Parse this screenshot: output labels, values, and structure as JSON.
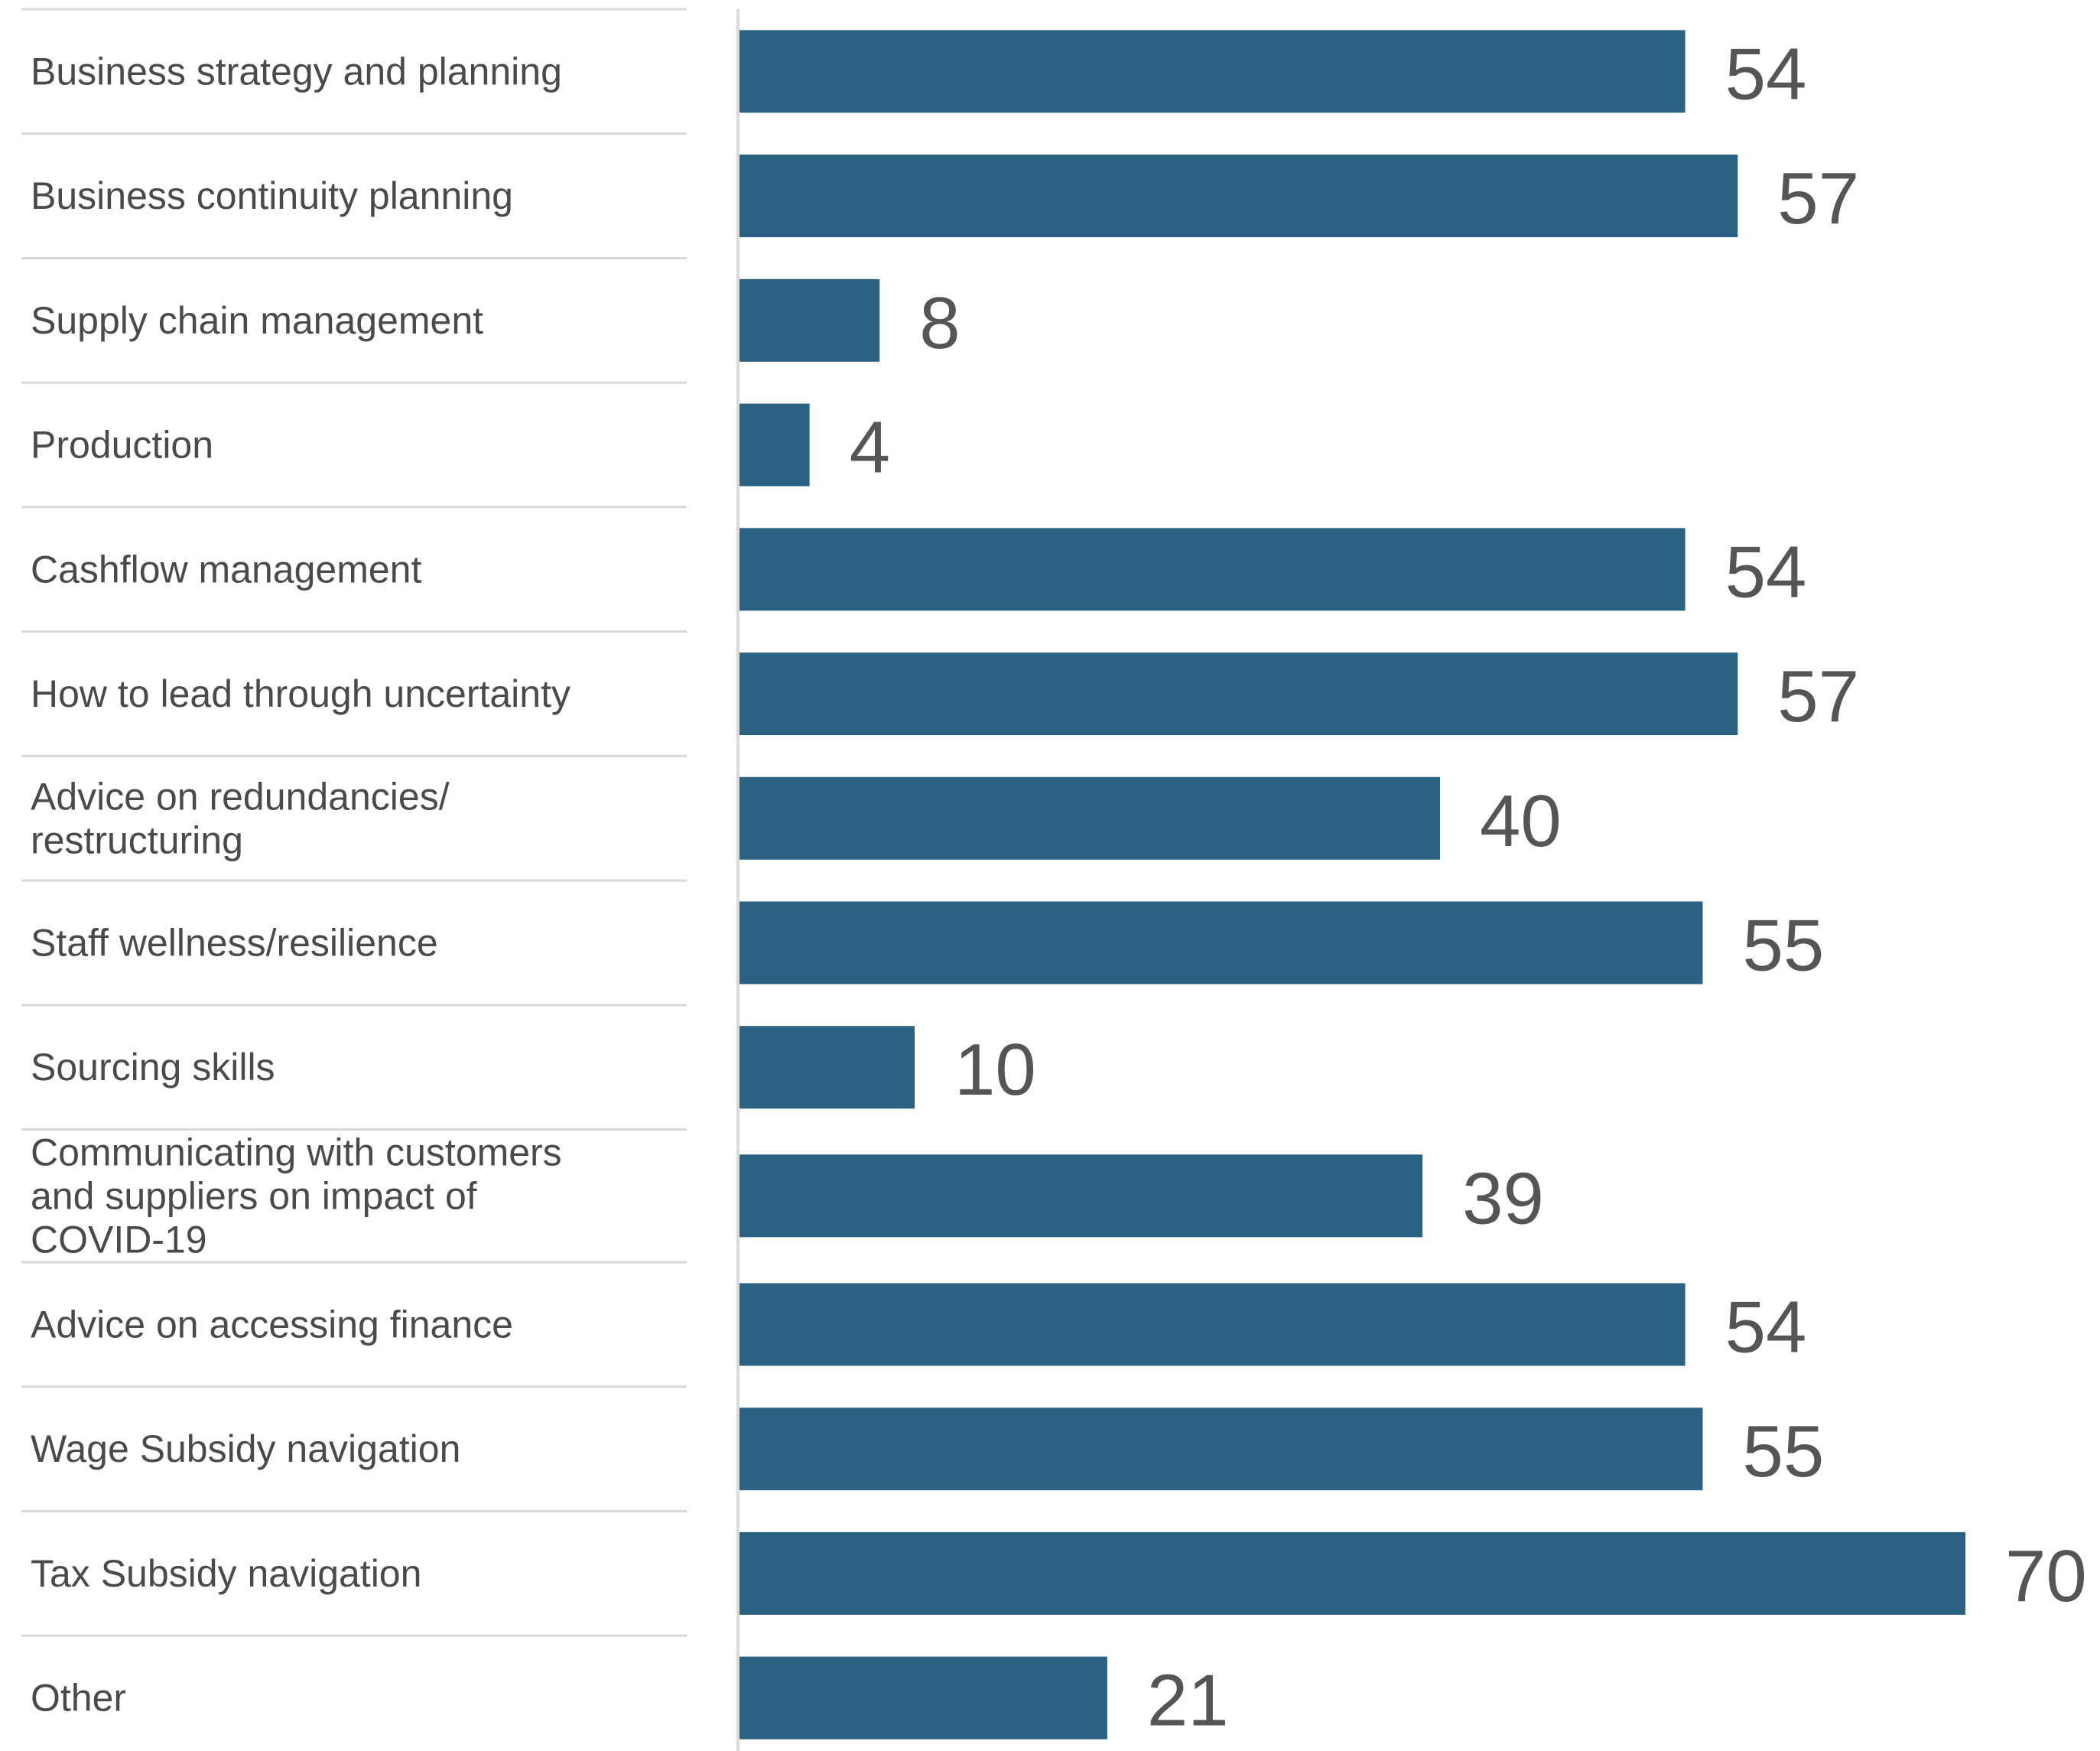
{
  "chart_data": {
    "type": "bar",
    "orientation": "horizontal",
    "categories": [
      [
        "Business strategy and planning"
      ],
      [
        "Business continuity planning"
      ],
      [
        "Supply chain management"
      ],
      [
        "Production"
      ],
      [
        "Cashflow management"
      ],
      [
        "How to lead through uncertainty"
      ],
      [
        "Advice on redundancies/",
        "restructuring"
      ],
      [
        "Staff wellness/resilience"
      ],
      [
        "Sourcing skills"
      ],
      [
        "Communicating with customers",
        "and suppliers on impact of",
        "COVID-19"
      ],
      [
        "Advice on accessing finance"
      ],
      [
        "Wage Subsidy navigation"
      ],
      [
        "Tax Subsidy navigation"
      ],
      [
        "Other"
      ]
    ],
    "values": [
      54,
      57,
      8,
      4,
      54,
      57,
      40,
      55,
      10,
      39,
      54,
      55,
      70,
      21
    ],
    "value_labels": [
      "54",
      "57",
      "8",
      "4",
      "54",
      "57",
      "40",
      "55",
      "10",
      "39",
      "54",
      "55",
      "70",
      "21"
    ],
    "xlim": [
      0,
      70
    ],
    "grid": false,
    "legend": "none",
    "bar_color": "#2b6282",
    "label_color": "#4a4a4a",
    "value_color": "#555555",
    "divider_color": "#d9d9d9"
  }
}
